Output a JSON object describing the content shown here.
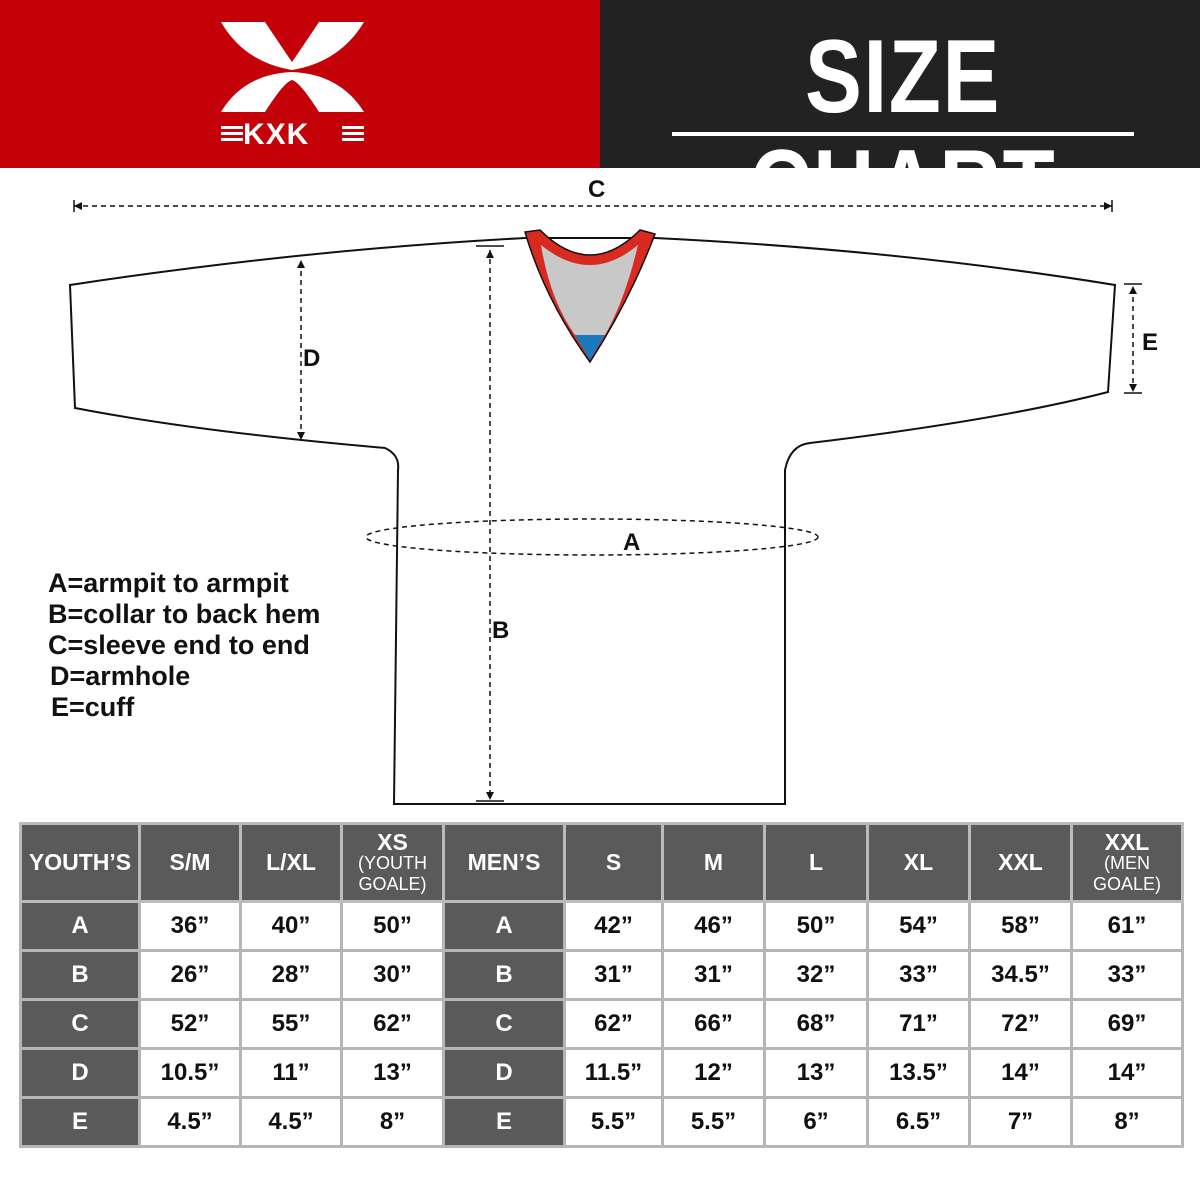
{
  "header": {
    "brand": "KXK",
    "title": "SIZE CHART",
    "brand_color": "#c40008",
    "dark_color": "#222222"
  },
  "diagram": {
    "labels": {
      "a": "A",
      "b": "B",
      "c": "C",
      "d": "D",
      "e": "E"
    }
  },
  "legend": [
    "A=armpit to armpit",
    "B=collar to back hem",
    "C=sleeve end to end",
    "D=armhole",
    "E=cuff"
  ],
  "table": {
    "header": [
      {
        "main": "YOUTH’S"
      },
      {
        "main": "S/M"
      },
      {
        "main": "L/XL"
      },
      {
        "main": "XS",
        "sub": "(YOUTH GOALE)"
      },
      {
        "main": "MEN’S"
      },
      {
        "main": "S"
      },
      {
        "main": "M"
      },
      {
        "main": "L"
      },
      {
        "main": "XL"
      },
      {
        "main": "XXL"
      },
      {
        "main": "XXL",
        "sub": "(MEN GOALE)"
      }
    ],
    "rows": [
      [
        "A",
        "36”",
        "40”",
        "50”",
        "A",
        "42”",
        "46”",
        "50”",
        "54”",
        "58”",
        "61”"
      ],
      [
        "B",
        "26”",
        "28”",
        "30”",
        "B",
        "31”",
        "31”",
        "32”",
        "33”",
        "34.5”",
        "33”"
      ],
      [
        "C",
        "52”",
        "55”",
        "62”",
        "C",
        "62”",
        "66”",
        "68”",
        "71”",
        "72”",
        "69”"
      ],
      [
        "D",
        "10.5”",
        "11”",
        "13”",
        "D",
        "11.5”",
        "12”",
        "13”",
        "13.5”",
        "14”",
        "14”"
      ],
      [
        "E",
        "4.5”",
        "4.5”",
        "8”",
        "E",
        "5.5”",
        "5.5”",
        "6”",
        "6.5”",
        "7”",
        "8”"
      ]
    ]
  }
}
